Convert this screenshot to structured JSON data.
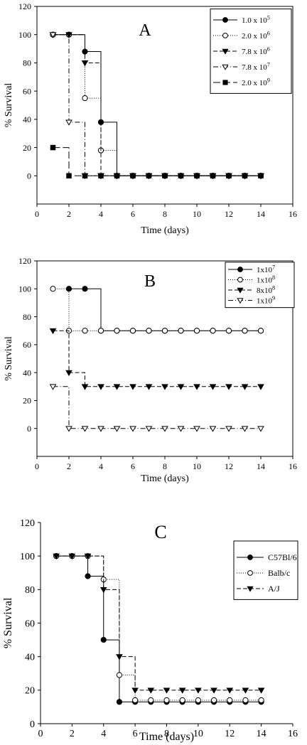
{
  "chart_data": [
    {
      "type": "line",
      "panel_label": "A",
      "xlabel": "Time (days)",
      "ylabel": "% Survival",
      "xlim": [
        0,
        16
      ],
      "ylim": [
        -20,
        120
      ],
      "xticks": [
        "0",
        "2",
        "4",
        "6",
        "8",
        "10",
        "12",
        "14",
        "16"
      ],
      "yticks": [
        "0",
        "20",
        "40",
        "60",
        "80",
        "100",
        "120"
      ],
      "frame": "box",
      "legend_position": "top-right",
      "series": [
        {
          "name": "1.0 x 10",
          "name_sup": "5",
          "marker": "circle-filled",
          "dash": "solid",
          "x": [
            1,
            2,
            3,
            4,
            5,
            6,
            7,
            8,
            9,
            10,
            11,
            12,
            13,
            14
          ],
          "y": [
            100,
            100,
            88,
            38,
            0,
            0,
            0,
            0,
            0,
            0,
            0,
            0,
            0,
            0
          ]
        },
        {
          "name": "2.0 x 10",
          "name_sup": "6",
          "marker": "circle-open",
          "dash": "dotted",
          "x": [
            1,
            2,
            3,
            4,
            5,
            6,
            7,
            8,
            9,
            10,
            11,
            12,
            13,
            14
          ],
          "y": [
            100,
            100,
            55,
            18,
            0,
            0,
            0,
            0,
            0,
            0,
            0,
            0,
            0,
            0
          ]
        },
        {
          "name": "7.8 x 10",
          "name_sup": "6",
          "marker": "triangle-down-filled",
          "dash": "dashed",
          "x": [
            1,
            2,
            3,
            4,
            5,
            6,
            7,
            8,
            9,
            10,
            11,
            12,
            13,
            14
          ],
          "y": [
            100,
            100,
            80,
            0,
            0,
            0,
            0,
            0,
            0,
            0,
            0,
            0,
            0,
            0
          ]
        },
        {
          "name": "7.8 x 10",
          "name_sup": "7",
          "marker": "triangle-down-open",
          "dash": "dashdot",
          "x": [
            1,
            2,
            3,
            4,
            5,
            6,
            7,
            8,
            9,
            10,
            11,
            12,
            13,
            14
          ],
          "y": [
            100,
            38,
            0,
            0,
            0,
            0,
            0,
            0,
            0,
            0,
            0,
            0,
            0,
            0
          ]
        },
        {
          "name": "2.0 x 10",
          "name_sup": "9",
          "marker": "square-filled",
          "dash": "longdash",
          "x": [
            1,
            2,
            3,
            4,
            5,
            6,
            7,
            8,
            9,
            10,
            11,
            12,
            13,
            14
          ],
          "y": [
            20,
            0,
            0,
            0,
            0,
            0,
            0,
            0,
            0,
            0,
            0,
            0,
            0,
            0
          ]
        }
      ]
    },
    {
      "type": "line",
      "panel_label": "B",
      "xlabel": "Time (days)",
      "ylabel": "% Survival",
      "xlim": [
        0,
        16
      ],
      "ylim": [
        -20,
        120
      ],
      "xticks": [
        "0",
        "2",
        "4",
        "6",
        "8",
        "10",
        "12",
        "14",
        "16"
      ],
      "yticks": [
        "0",
        "20",
        "40",
        "60",
        "80",
        "100",
        "120"
      ],
      "frame": "box",
      "legend_position": "top-right",
      "series": [
        {
          "name": "1x10",
          "name_sup": "7",
          "marker": "circle-filled",
          "dash": "solid",
          "x": [
            2,
            3,
            4,
            5,
            6,
            7,
            8,
            9,
            10,
            11,
            12,
            13,
            14
          ],
          "y": [
            100,
            100,
            70,
            70,
            70,
            70,
            70,
            70,
            70,
            70,
            70,
            70,
            70
          ]
        },
        {
          "name": "1x10",
          "name_sup": "8",
          "marker": "circle-open",
          "dash": "dotted",
          "x": [
            1,
            2,
            3,
            4,
            5,
            6,
            7,
            8,
            9,
            10,
            11,
            12,
            13,
            14
          ],
          "y": [
            100,
            70,
            70,
            70,
            70,
            70,
            70,
            70,
            70,
            70,
            70,
            70,
            70,
            70
          ]
        },
        {
          "name": "8x10",
          "name_sup": "8",
          "marker": "triangle-down-filled",
          "dash": "dashed",
          "x": [
            1,
            2,
            3,
            4,
            5,
            6,
            7,
            8,
            9,
            10,
            11,
            12,
            13,
            14
          ],
          "y": [
            70,
            40,
            30,
            30,
            30,
            30,
            30,
            30,
            30,
            30,
            30,
            30,
            30,
            30
          ]
        },
        {
          "name": "1x10",
          "name_sup": "9",
          "marker": "triangle-down-open",
          "dash": "dashdot",
          "x": [
            1,
            2,
            3,
            4,
            5,
            6,
            7,
            8,
            9,
            10,
            11,
            12,
            13,
            14
          ],
          "y": [
            30,
            0,
            0,
            0,
            0,
            0,
            0,
            0,
            0,
            0,
            0,
            0,
            0,
            0
          ]
        }
      ]
    },
    {
      "type": "line",
      "panel_label": "C",
      "xlabel": "Time (days)",
      "ylabel": "% Survival",
      "xlim": [
        0,
        16
      ],
      "ylim": [
        0,
        120
      ],
      "xticks": [
        "0",
        "2",
        "4",
        "6",
        "8",
        "10",
        "12",
        "14",
        "16"
      ],
      "yticks": [
        "0",
        "20",
        "40",
        "60",
        "80",
        "100",
        "120"
      ],
      "frame": "axes",
      "legend_position": "top-right",
      "series": [
        {
          "name": "C57Bl/6",
          "name_sup": "",
          "marker": "circle-filled",
          "dash": "solid",
          "x": [
            1,
            2,
            3,
            4,
            5,
            6,
            7,
            8,
            9,
            10,
            11,
            12,
            13,
            14
          ],
          "y": [
            100,
            100,
            88,
            50,
            13,
            13,
            13,
            13,
            13,
            13,
            13,
            13,
            13,
            13
          ]
        },
        {
          "name": "Balb/c",
          "name_sup": "",
          "marker": "circle-open",
          "dash": "dotted",
          "x": [
            1,
            2,
            3,
            4,
            5,
            6,
            7,
            8,
            9,
            10,
            11,
            12,
            13,
            14
          ],
          "y": [
            100,
            100,
            100,
            86,
            29,
            14,
            14,
            14,
            14,
            14,
            14,
            14,
            14,
            14
          ]
        },
        {
          "name": "A/J",
          "name_sup": "",
          "marker": "triangle-down-filled",
          "dash": "dashed",
          "x": [
            1,
            2,
            3,
            4,
            5,
            6,
            7,
            8,
            9,
            10,
            11,
            12,
            13,
            14
          ],
          "y": [
            100,
            100,
            100,
            80,
            40,
            20,
            20,
            20,
            20,
            20,
            20,
            20,
            20,
            20
          ]
        }
      ]
    }
  ]
}
